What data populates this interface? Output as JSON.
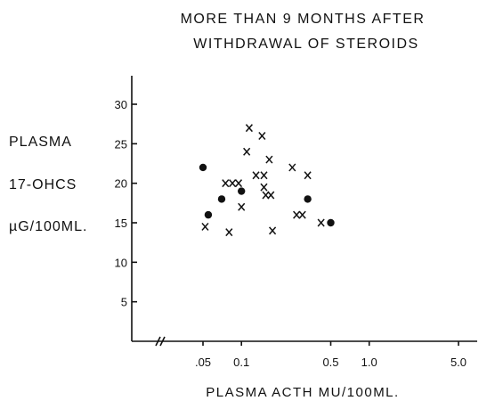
{
  "chart_data": {
    "type": "scatter",
    "title_lines": [
      "MORE THAN 9 MONTHS AFTER",
      "WITHDRAWAL OF STEROIDS"
    ],
    "ylabel_lines": [
      "PLASMA",
      "17-OHCS",
      "µG/100ML."
    ],
    "xlabel": "PLASMA  ACTH MU/100ML.",
    "x_scale": "log",
    "x_axis_break": true,
    "ylim": [
      0,
      35
    ],
    "y_ticks": [
      {
        "value": 5,
        "label": "5"
      },
      {
        "value": 10,
        "label": "10"
      },
      {
        "value": 15,
        "label": "15"
      },
      {
        "value": 20,
        "label": "20"
      },
      {
        "value": 25,
        "label": "25"
      },
      {
        "value": 30,
        "label": "30"
      }
    ],
    "x_ticks": [
      {
        "value": 0.05,
        "label": ".05"
      },
      {
        "value": 0.1,
        "label": "0.1"
      },
      {
        "value": 0.5,
        "label": "0.5"
      },
      {
        "value": 1.0,
        "label": "1.0"
      },
      {
        "value": 5.0,
        "label": "5.0"
      }
    ],
    "series": [
      {
        "marker": "x",
        "points": [
          {
            "x": 0.052,
            "y": 14.5
          },
          {
            "x": 0.075,
            "y": 20
          },
          {
            "x": 0.085,
            "y": 20
          },
          {
            "x": 0.095,
            "y": 20
          },
          {
            "x": 0.08,
            "y": 13.8
          },
          {
            "x": 0.1,
            "y": 17
          },
          {
            "x": 0.11,
            "y": 24
          },
          {
            "x": 0.115,
            "y": 27
          },
          {
            "x": 0.13,
            "y": 21
          },
          {
            "x": 0.145,
            "y": 26
          },
          {
            "x": 0.15,
            "y": 21
          },
          {
            "x": 0.15,
            "y": 19.5
          },
          {
            "x": 0.155,
            "y": 18.5
          },
          {
            "x": 0.17,
            "y": 18.5
          },
          {
            "x": 0.165,
            "y": 23
          },
          {
            "x": 0.175,
            "y": 14
          },
          {
            "x": 0.25,
            "y": 22
          },
          {
            "x": 0.27,
            "y": 16
          },
          {
            "x": 0.3,
            "y": 16
          },
          {
            "x": 0.33,
            "y": 21
          },
          {
            "x": 0.42,
            "y": 15
          }
        ]
      },
      {
        "marker": "dot",
        "points": [
          {
            "x": 0.05,
            "y": 22
          },
          {
            "x": 0.055,
            "y": 16
          },
          {
            "x": 0.07,
            "y": 18
          },
          {
            "x": 0.1,
            "y": 19
          },
          {
            "x": 0.33,
            "y": 18
          },
          {
            "x": 0.5,
            "y": 15
          }
        ]
      }
    ]
  }
}
